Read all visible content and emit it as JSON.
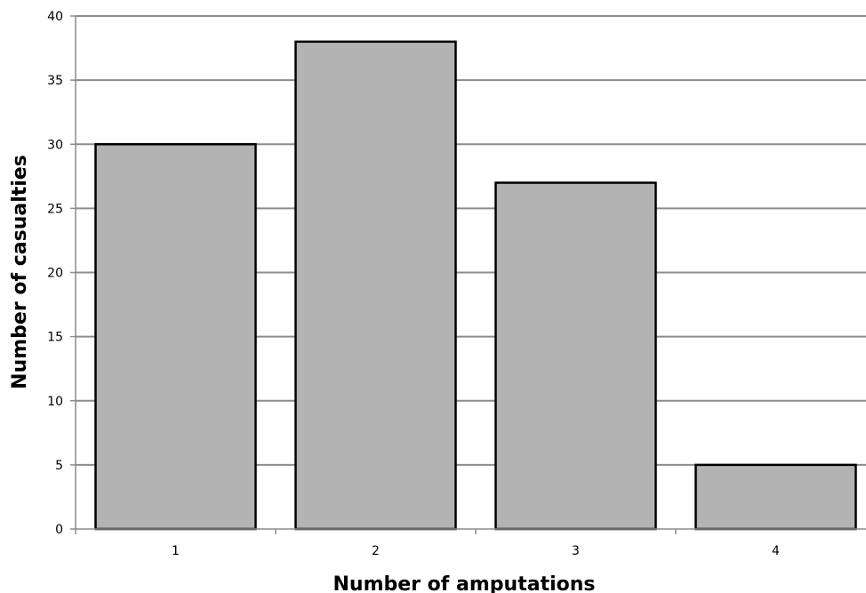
{
  "chart_data": {
    "type": "bar",
    "categories": [
      "1",
      "2",
      "3",
      "4"
    ],
    "values": [
      30,
      38,
      27,
      5
    ],
    "title": "",
    "xlabel": "Number of amputations",
    "ylabel": "Number of casualties",
    "ylim": [
      0,
      40
    ],
    "yticks": [
      0,
      5,
      10,
      15,
      20,
      25,
      30,
      35,
      40
    ],
    "grid": true,
    "legend": "none",
    "colors": {
      "bar": "#b3b3b3",
      "bar_outline": "#000000",
      "grid": "#8c8c8c"
    }
  }
}
